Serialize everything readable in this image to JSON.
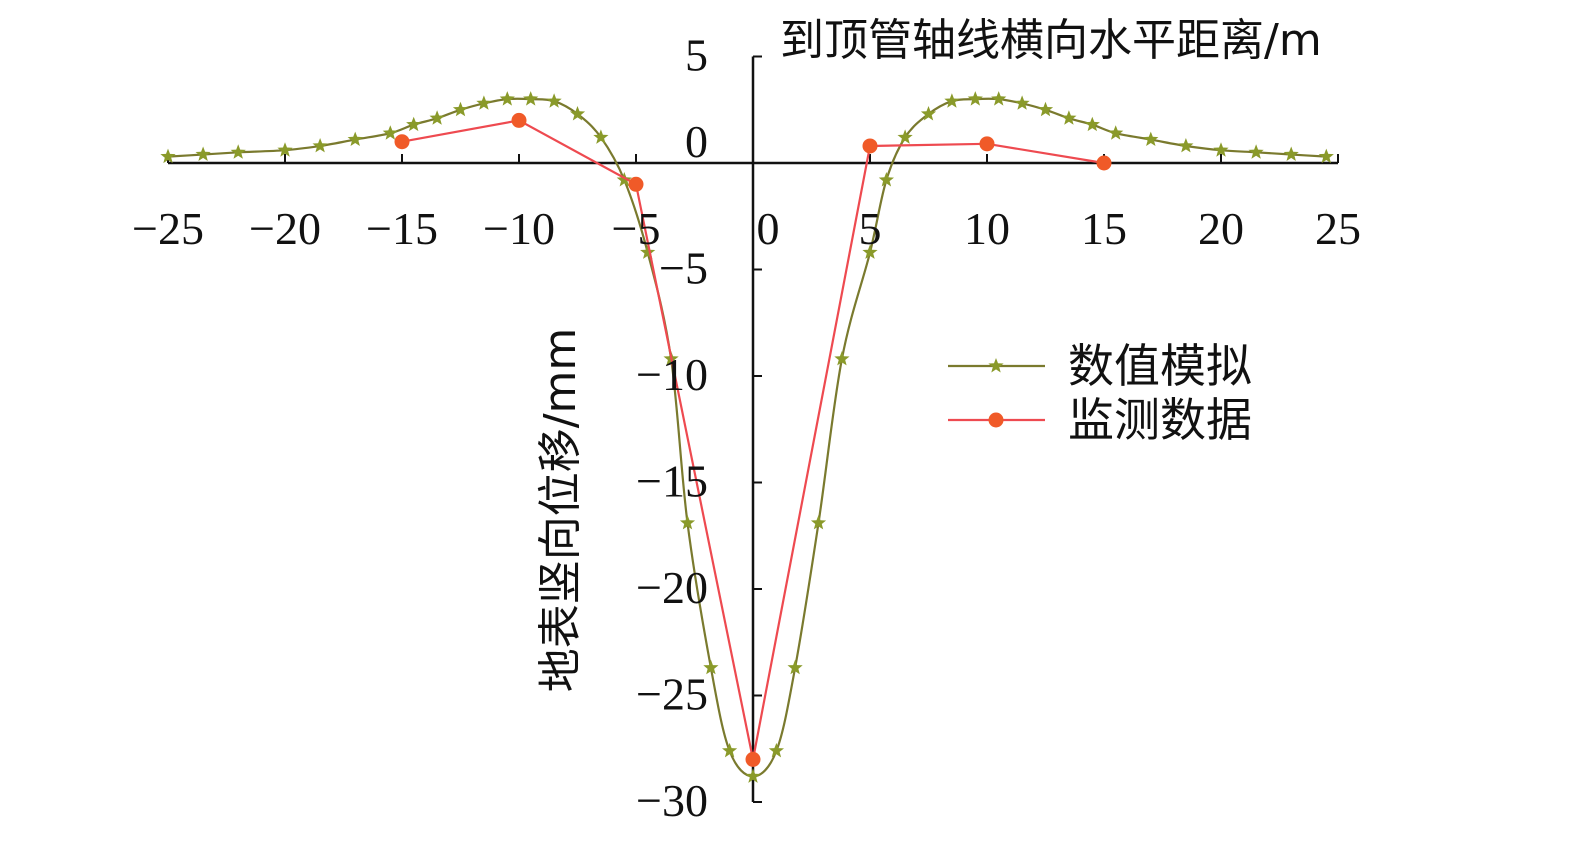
{
  "chart_data": {
    "type": "line",
    "xlabel": "到顶管轴线横向水平距离/m",
    "ylabel": "地表竖向位移/mm",
    "xlim": [
      -25,
      25
    ],
    "ylim": [
      -30,
      5
    ],
    "x_ticks": [
      "−25",
      "−20",
      "−15",
      "−10",
      "−5",
      "0",
      "5",
      "10",
      "15",
      "20",
      "25"
    ],
    "y_ticks": [
      "5",
      "0",
      "−5",
      "−10",
      "−15",
      "−20",
      "−25",
      "−30"
    ],
    "legend_position": "right",
    "series": [
      {
        "name": "数值模拟",
        "color": "#7a7a2e",
        "marker": "star",
        "marker_color": "#8a9a2a",
        "x": [
          -25,
          -23.5,
          -22,
          -20,
          -18.5,
          -17,
          -15.5,
          -14.5,
          -13.5,
          -12.5,
          -11.5,
          -10.5,
          -9.5,
          -8.5,
          -7.5,
          -6.5,
          -5.5,
          -4.5,
          -3.5,
          -2.8,
          -1.8,
          -1,
          0,
          1,
          1.8,
          2.8,
          3.8,
          5,
          5.7,
          6.5,
          7.5,
          8.5,
          9.5,
          10.5,
          11.5,
          12.5,
          13.5,
          14.5,
          15.5,
          17,
          18.5,
          20,
          21.5,
          23,
          24.5
        ],
        "y": [
          0.3,
          0.4,
          0.5,
          0.6,
          0.8,
          1.1,
          1.4,
          1.8,
          2.1,
          2.5,
          2.8,
          3.0,
          3.0,
          2.9,
          2.3,
          1.2,
          -0.8,
          -4.2,
          -9.2,
          -16.9,
          -23.7,
          -27.6,
          -28.8,
          -27.6,
          -23.7,
          -16.9,
          -9.2,
          -4.2,
          -0.8,
          1.2,
          2.3,
          2.9,
          3.0,
          3.0,
          2.8,
          2.5,
          2.1,
          1.8,
          1.4,
          1.1,
          0.8,
          0.6,
          0.5,
          0.4,
          0.3
        ]
      },
      {
        "name": "监测数据",
        "color": "#ee4a50",
        "marker": "circle",
        "marker_color": "#f05a28",
        "x": [
          -15,
          -10,
          -5,
          0,
          5,
          10,
          15
        ],
        "y": [
          1.0,
          2.0,
          -1.0,
          -28.0,
          0.8,
          0.9,
          0.0
        ]
      }
    ]
  }
}
